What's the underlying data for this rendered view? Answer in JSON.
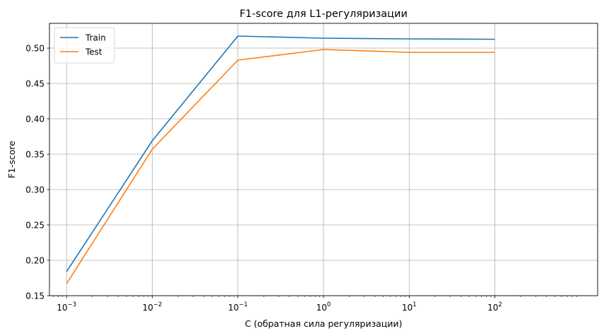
{
  "chart_data": {
    "type": "line",
    "title": "F1-score для L1-регуляризации",
    "xlabel": "C (обратная сила регуляризации)",
    "ylabel": "F1-score",
    "x_scale": "log",
    "x": [
      0.001,
      0.01,
      0.1,
      1,
      10,
      100
    ],
    "x_tick_labels": [
      {
        "base": "10",
        "exp": "−3"
      },
      {
        "base": "10",
        "exp": "−2"
      },
      {
        "base": "10",
        "exp": "−1"
      },
      {
        "base": "10",
        "exp": "0"
      },
      {
        "base": "10",
        "exp": "1"
      },
      {
        "base": "10",
        "exp": "2"
      }
    ],
    "y_ticks": [
      0.15,
      0.2,
      0.25,
      0.3,
      0.35,
      0.4,
      0.45,
      0.5
    ],
    "y_tick_labels": [
      "0.15",
      "0.20",
      "0.25",
      "0.30",
      "0.35",
      "0.40",
      "0.45",
      "0.50"
    ],
    "ylim": [
      0.15,
      0.535
    ],
    "xlim_log10": [
      -3.2,
      3.2
    ],
    "grid": true,
    "legend_position": "upper left",
    "series": [
      {
        "name": "Train",
        "color": "#1f77b4",
        "values": [
          0.184,
          0.369,
          0.517,
          0.514,
          0.513,
          0.5125
        ]
      },
      {
        "name": "Test",
        "color": "#ff7f0e",
        "values": [
          0.167,
          0.357,
          0.483,
          0.498,
          0.494,
          0.494
        ]
      }
    ]
  }
}
